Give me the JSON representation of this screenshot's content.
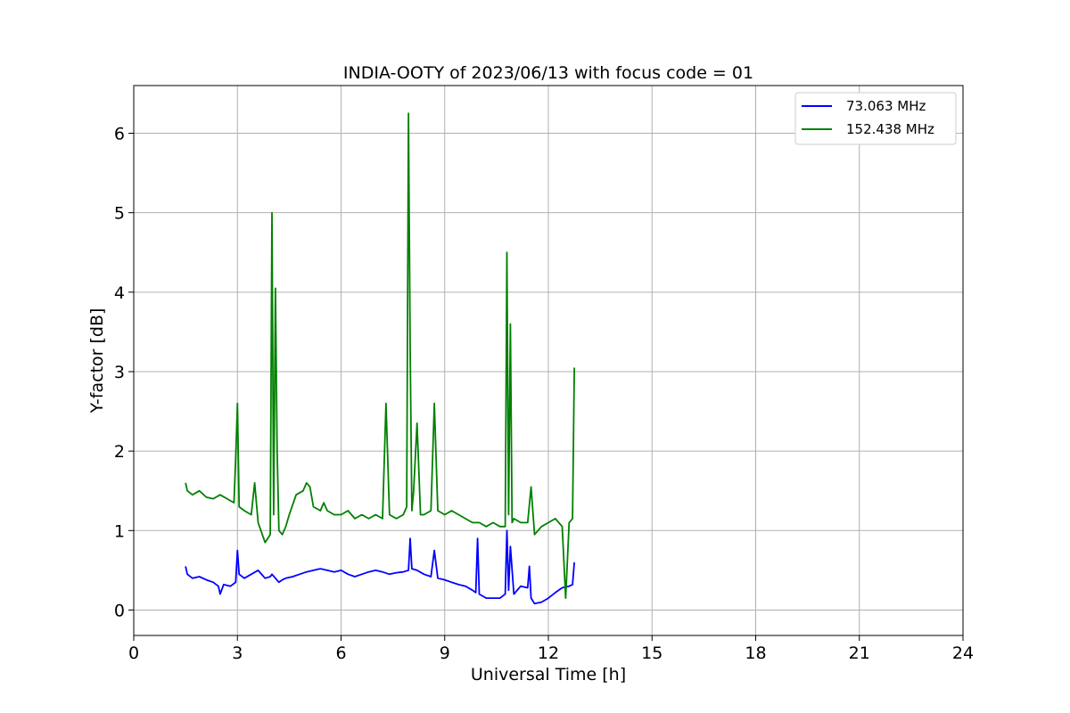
{
  "chart_data": {
    "type": "line",
    "title": "INDIA-OOTY of 2023/06/13 with focus code = 01",
    "xlabel": "Universal Time [h]",
    "ylabel": "Y-factor [dB]",
    "xlim": [
      0,
      24
    ],
    "ylim": [
      -0.32,
      6.6
    ],
    "xticks": [
      0,
      3,
      6,
      9,
      12,
      15,
      18,
      21,
      24
    ],
    "yticks": [
      0,
      1,
      2,
      3,
      4,
      5,
      6
    ],
    "grid": true,
    "legend_position": "top-right",
    "series": [
      {
        "name": "  73.063 MHz",
        "color": "#0000ff",
        "x": [
          1.5,
          1.55,
          1.7,
          1.9,
          2.1,
          2.3,
          2.45,
          2.5,
          2.6,
          2.8,
          2.95,
          3.0,
          3.05,
          3.2,
          3.4,
          3.6,
          3.8,
          3.95,
          4.0,
          4.1,
          4.2,
          4.3,
          4.4,
          4.6,
          4.8,
          5.0,
          5.2,
          5.4,
          5.6,
          5.8,
          6.0,
          6.2,
          6.4,
          6.6,
          6.8,
          7.0,
          7.2,
          7.4,
          7.6,
          7.8,
          7.95,
          8.0,
          8.05,
          8.2,
          8.4,
          8.6,
          8.7,
          8.8,
          9.0,
          9.2,
          9.4,
          9.6,
          9.8,
          9.9,
          9.95,
          10.0,
          10.2,
          10.4,
          10.6,
          10.75,
          10.8,
          10.85,
          10.9,
          11.0,
          11.2,
          11.4,
          11.45,
          11.5,
          11.6,
          11.8,
          12.0,
          12.2,
          12.4,
          12.6,
          12.7,
          12.75
        ],
        "y": [
          0.55,
          0.45,
          0.4,
          0.42,
          0.38,
          0.35,
          0.3,
          0.2,
          0.32,
          0.3,
          0.35,
          0.75,
          0.45,
          0.4,
          0.45,
          0.5,
          0.4,
          0.42,
          0.45,
          0.4,
          0.35,
          0.38,
          0.4,
          0.42,
          0.45,
          0.48,
          0.5,
          0.52,
          0.5,
          0.48,
          0.5,
          0.45,
          0.42,
          0.45,
          0.48,
          0.5,
          0.48,
          0.45,
          0.47,
          0.48,
          0.5,
          0.9,
          0.52,
          0.5,
          0.45,
          0.42,
          0.75,
          0.4,
          0.38,
          0.35,
          0.32,
          0.3,
          0.25,
          0.22,
          0.9,
          0.2,
          0.15,
          0.15,
          0.15,
          0.2,
          1.0,
          0.25,
          0.8,
          0.2,
          0.3,
          0.28,
          0.55,
          0.15,
          0.08,
          0.1,
          0.15,
          0.22,
          0.28,
          0.3,
          0.32,
          0.6
        ]
      },
      {
        "name": "152.438 MHz",
        "color": "#008000",
        "x": [
          1.5,
          1.55,
          1.7,
          1.9,
          2.1,
          2.3,
          2.5,
          2.7,
          2.9,
          2.95,
          3.0,
          3.05,
          3.2,
          3.4,
          3.5,
          3.6,
          3.8,
          3.95,
          4.0,
          4.05,
          4.1,
          4.15,
          4.2,
          4.3,
          4.4,
          4.5,
          4.7,
          4.9,
          5.0,
          5.1,
          5.2,
          5.4,
          5.5,
          5.6,
          5.8,
          6.0,
          6.2,
          6.4,
          6.6,
          6.8,
          7.0,
          7.2,
          7.3,
          7.4,
          7.6,
          7.8,
          7.9,
          7.95,
          8.0,
          8.05,
          8.1,
          8.2,
          8.3,
          8.4,
          8.6,
          8.7,
          8.8,
          9.0,
          9.2,
          9.4,
          9.6,
          9.8,
          10.0,
          10.2,
          10.4,
          10.6,
          10.75,
          10.8,
          10.85,
          10.9,
          10.95,
          11.0,
          11.2,
          11.4,
          11.5,
          11.6,
          11.8,
          12.0,
          12.2,
          12.4,
          12.5,
          12.6,
          12.7,
          12.75
        ],
        "y": [
          1.6,
          1.5,
          1.45,
          1.5,
          1.42,
          1.4,
          1.45,
          1.4,
          1.35,
          1.9,
          2.6,
          1.3,
          1.25,
          1.2,
          1.6,
          1.1,
          0.85,
          0.95,
          5.0,
          1.2,
          4.05,
          2.0,
          1.0,
          0.95,
          1.05,
          1.2,
          1.45,
          1.5,
          1.6,
          1.55,
          1.3,
          1.25,
          1.35,
          1.25,
          1.2,
          1.2,
          1.25,
          1.15,
          1.2,
          1.15,
          1.2,
          1.15,
          2.6,
          1.2,
          1.15,
          1.2,
          1.3,
          6.25,
          3.3,
          1.25,
          1.5,
          2.35,
          1.2,
          1.2,
          1.25,
          2.6,
          1.25,
          1.2,
          1.25,
          1.2,
          1.15,
          1.1,
          1.1,
          1.05,
          1.1,
          1.05,
          1.05,
          4.5,
          1.2,
          3.6,
          1.1,
          1.15,
          1.1,
          1.1,
          1.55,
          0.95,
          1.05,
          1.1,
          1.15,
          1.05,
          0.15,
          1.1,
          1.15,
          3.05
        ]
      }
    ]
  }
}
